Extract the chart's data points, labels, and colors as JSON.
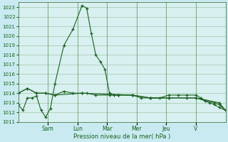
{
  "xlabel": "Pression niveau de la mer( hPa )",
  "bg_color": "#c8eaf0",
  "plot_bg_color": "#d8f0f0",
  "grid_color": "#99bb99",
  "line_color": "#1a6020",
  "ylim": [
    1011,
    1023.5
  ],
  "yticks": [
    1011,
    1012,
    1013,
    1014,
    1015,
    1016,
    1017,
    1018,
    1019,
    1020,
    1021,
    1022,
    1023
  ],
  "day_labels": [
    "Sam",
    "Lun",
    "Mar",
    "Mer",
    "Jeu",
    "V"
  ],
  "day_tick_x": [
    0.143,
    0.286,
    0.429,
    0.571,
    0.714,
    0.857
  ],
  "vline_x": [
    0.143,
    0.286,
    0.429,
    0.571,
    0.714,
    0.857
  ],
  "series": [
    {
      "x": [
        0.0,
        0.022,
        0.044,
        0.066,
        0.088,
        0.11,
        0.132,
        0.155,
        0.177,
        0.22,
        0.264,
        0.308,
        0.33,
        0.352,
        0.374,
        0.396,
        0.418,
        0.44,
        0.462,
        0.484,
        0.55,
        0.594,
        0.638,
        0.682,
        0.726,
        0.77,
        0.814,
        0.858,
        0.88,
        0.902,
        0.924,
        0.946,
        0.97,
        1.0
      ],
      "y": [
        1012.8,
        1012.2,
        1013.5,
        1013.5,
        1013.7,
        1012.2,
        1011.5,
        1012.4,
        1015.0,
        1019.0,
        1020.7,
        1023.2,
        1022.9,
        1020.3,
        1018.0,
        1017.3,
        1016.5,
        1014.0,
        1013.8,
        1013.8,
        1013.8,
        1013.5,
        1013.5,
        1013.5,
        1013.8,
        1013.8,
        1013.8,
        1013.8,
        1013.5,
        1013.2,
        1013.0,
        1012.8,
        1012.5,
        1012.2
      ]
    },
    {
      "x": [
        0.0,
        0.044,
        0.088,
        0.132,
        0.177,
        0.308,
        0.55,
        0.638,
        0.726,
        0.858,
        0.97,
        1.0
      ],
      "y": [
        1014.0,
        1014.5,
        1014.0,
        1014.0,
        1013.8,
        1014.0,
        1013.8,
        1013.5,
        1013.5,
        1013.5,
        1013.0,
        1012.2
      ]
    },
    {
      "x": [
        0.0,
        0.044,
        0.088,
        0.132,
        0.177,
        0.22,
        0.264,
        0.308,
        0.33,
        0.374,
        0.44,
        0.484,
        0.55,
        0.638,
        0.726,
        0.814,
        0.858,
        0.902,
        0.946,
        0.97,
        1.0
      ],
      "y": [
        1014.0,
        1014.5,
        1014.0,
        1014.0,
        1013.8,
        1014.2,
        1014.0,
        1014.0,
        1014.0,
        1013.8,
        1013.8,
        1013.8,
        1013.8,
        1013.5,
        1013.5,
        1013.5,
        1013.5,
        1013.2,
        1013.0,
        1012.8,
        1012.2
      ]
    }
  ]
}
